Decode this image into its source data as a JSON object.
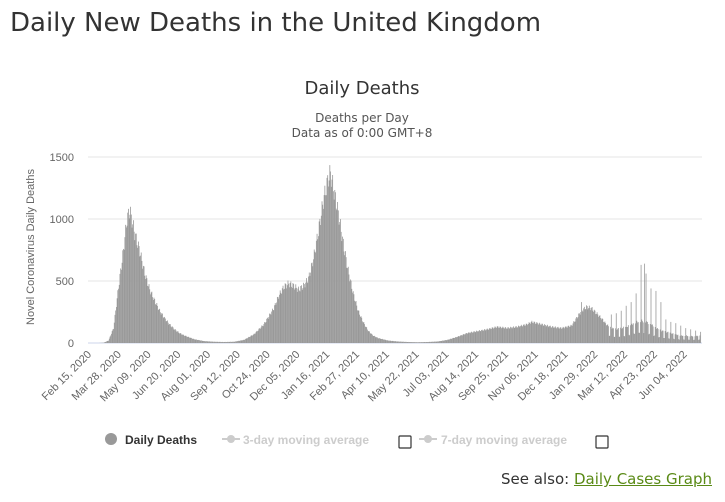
{
  "page": {
    "title": "Daily New Deaths in the United Kingdom",
    "see_also_label": "See also:",
    "see_also_link": "Daily Cases Graph"
  },
  "colors": {
    "bars": "#999999",
    "grid": "#e6e6e6",
    "legend_active": "#333333",
    "legend_inactive": "#cccccc",
    "link": "#5a8a16"
  },
  "chart_data": {
    "type": "bar",
    "title": "Daily Deaths",
    "subtitle_lines": [
      "Deaths per Day",
      "Data as of 0:00 GMT+8"
    ],
    "ylabel": "Novel Coronavirus Daily Deaths",
    "xlabel": "",
    "ylim": [
      0,
      1500
    ],
    "yticks": [
      0,
      500,
      1000,
      1500
    ],
    "xlim": [
      "2020-02-15",
      "2022-06-30"
    ],
    "x_tick_labels": [
      "Feb 15, 2020",
      "Mar 28, 2020",
      "May 09, 2020",
      "Jun 20, 2020",
      "Aug 01, 2020",
      "Sep 12, 2020",
      "Oct 24, 2020",
      "Dec 05, 2020",
      "Jan 16, 2021",
      "Feb 27, 2021",
      "Apr 10, 2021",
      "May 22, 2021",
      "Jul 03, 2021",
      "Aug 14, 2021",
      "Sep 25, 2021",
      "Nov 06, 2021",
      "Dec 18, 2021",
      "Jan 29, 2022",
      "Mar 12, 2022",
      "Apr 23, 2022",
      "Jun 04, 2022"
    ],
    "grid": true,
    "legend_position": "bottom",
    "legend": [
      {
        "label": "Daily Deaths",
        "marker": "circle",
        "active": true
      },
      {
        "label": "3-day moving average",
        "marker": "line-dot",
        "active": false,
        "checkbox": true
      },
      {
        "label": "7-day moving average",
        "marker": "line-dot",
        "active": false,
        "checkbox": true
      }
    ],
    "series": [
      {
        "name": "Daily Deaths",
        "points": [
          [
            "2020-03-01",
            0
          ],
          [
            "2020-03-08",
            2
          ],
          [
            "2020-03-15",
            20
          ],
          [
            "2020-03-22",
            120
          ],
          [
            "2020-03-29",
            450
          ],
          [
            "2020-04-05",
            750
          ],
          [
            "2020-04-10",
            1000
          ],
          [
            "2020-04-14",
            1070
          ],
          [
            "2020-04-21",
            880
          ],
          [
            "2020-04-28",
            740
          ],
          [
            "2020-05-05",
            560
          ],
          [
            "2020-05-12",
            430
          ],
          [
            "2020-05-19",
            340
          ],
          [
            "2020-05-26",
            260
          ],
          [
            "2020-06-02",
            200
          ],
          [
            "2020-06-09",
            150
          ],
          [
            "2020-06-16",
            110
          ],
          [
            "2020-06-23",
            80
          ],
          [
            "2020-06-30",
            60
          ],
          [
            "2020-07-07",
            45
          ],
          [
            "2020-07-14",
            30
          ],
          [
            "2020-07-28",
            15
          ],
          [
            "2020-08-11",
            10
          ],
          [
            "2020-08-25",
            8
          ],
          [
            "2020-09-08",
            10
          ],
          [
            "2020-09-22",
            25
          ],
          [
            "2020-10-06",
            70
          ],
          [
            "2020-10-20",
            150
          ],
          [
            "2020-11-03",
            280
          ],
          [
            "2020-11-10",
            380
          ],
          [
            "2020-11-17",
            450
          ],
          [
            "2020-11-24",
            480
          ],
          [
            "2020-12-01",
            460
          ],
          [
            "2020-12-08",
            430
          ],
          [
            "2020-12-15",
            460
          ],
          [
            "2020-12-22",
            520
          ],
          [
            "2020-12-29",
            680
          ],
          [
            "2021-01-05",
            900
          ],
          [
            "2021-01-12",
            1150
          ],
          [
            "2021-01-19",
            1330
          ],
          [
            "2021-01-22",
            1370
          ],
          [
            "2021-01-26",
            1250
          ],
          [
            "2021-02-02",
            1050
          ],
          [
            "2021-02-09",
            800
          ],
          [
            "2021-02-16",
            580
          ],
          [
            "2021-02-23",
            400
          ],
          [
            "2021-03-02",
            260
          ],
          [
            "2021-03-09",
            170
          ],
          [
            "2021-03-16",
            100
          ],
          [
            "2021-03-23",
            60
          ],
          [
            "2021-03-30",
            40
          ],
          [
            "2021-04-13",
            20
          ],
          [
            "2021-04-27",
            12
          ],
          [
            "2021-05-11",
            8
          ],
          [
            "2021-05-25",
            6
          ],
          [
            "2021-06-08",
            8
          ],
          [
            "2021-06-22",
            12
          ],
          [
            "2021-07-06",
            25
          ],
          [
            "2021-07-20",
            50
          ],
          [
            "2021-08-03",
            80
          ],
          [
            "2021-08-17",
            95
          ],
          [
            "2021-08-31",
            110
          ],
          [
            "2021-09-14",
            130
          ],
          [
            "2021-09-28",
            120
          ],
          [
            "2021-10-12",
            130
          ],
          [
            "2021-10-26",
            150
          ],
          [
            "2021-11-02",
            170
          ],
          [
            "2021-11-16",
            150
          ],
          [
            "2021-11-30",
            130
          ],
          [
            "2021-12-14",
            120
          ],
          [
            "2021-12-28",
            140
          ],
          [
            "2022-01-04",
            200
          ],
          [
            "2022-01-11",
            260
          ],
          [
            "2022-01-18",
            290
          ],
          [
            "2022-01-25",
            280
          ],
          [
            "2022-02-01",
            240
          ],
          [
            "2022-02-08",
            200
          ],
          [
            "2022-02-15",
            150
          ],
          [
            "2022-02-22",
            120
          ],
          [
            "2022-03-01",
            110
          ],
          [
            "2022-03-08",
            120
          ],
          [
            "2022-03-15",
            130
          ],
          [
            "2022-03-22",
            150
          ],
          [
            "2022-03-29",
            170
          ],
          [
            "2022-04-05",
            180
          ],
          [
            "2022-04-12",
            170
          ],
          [
            "2022-04-19",
            150
          ],
          [
            "2022-04-26",
            120
          ],
          [
            "2022-05-03",
            100
          ],
          [
            "2022-05-10",
            90
          ],
          [
            "2022-05-17",
            80
          ],
          [
            "2022-05-24",
            70
          ],
          [
            "2022-05-31",
            60
          ],
          [
            "2022-06-07",
            60
          ],
          [
            "2022-06-14",
            55
          ],
          [
            "2022-06-21",
            55
          ],
          [
            "2022-06-28",
            60
          ]
        ],
        "spikes": [
          [
            "2022-01-11",
            330
          ],
          [
            "2022-02-22",
            230
          ],
          [
            "2022-03-01",
            240
          ],
          [
            "2022-03-08",
            260
          ],
          [
            "2022-03-15",
            300
          ],
          [
            "2022-03-22",
            330
          ],
          [
            "2022-03-29",
            400
          ],
          [
            "2022-04-05",
            630
          ],
          [
            "2022-04-10",
            640
          ],
          [
            "2022-04-12",
            560
          ],
          [
            "2022-04-19",
            440
          ],
          [
            "2022-04-26",
            420
          ],
          [
            "2022-05-03",
            330
          ],
          [
            "2022-05-10",
            190
          ],
          [
            "2022-05-17",
            170
          ],
          [
            "2022-05-24",
            160
          ],
          [
            "2022-05-31",
            140
          ],
          [
            "2022-06-07",
            120
          ],
          [
            "2022-06-14",
            110
          ],
          [
            "2022-06-21",
            100
          ],
          [
            "2022-06-28",
            90
          ]
        ]
      }
    ]
  }
}
